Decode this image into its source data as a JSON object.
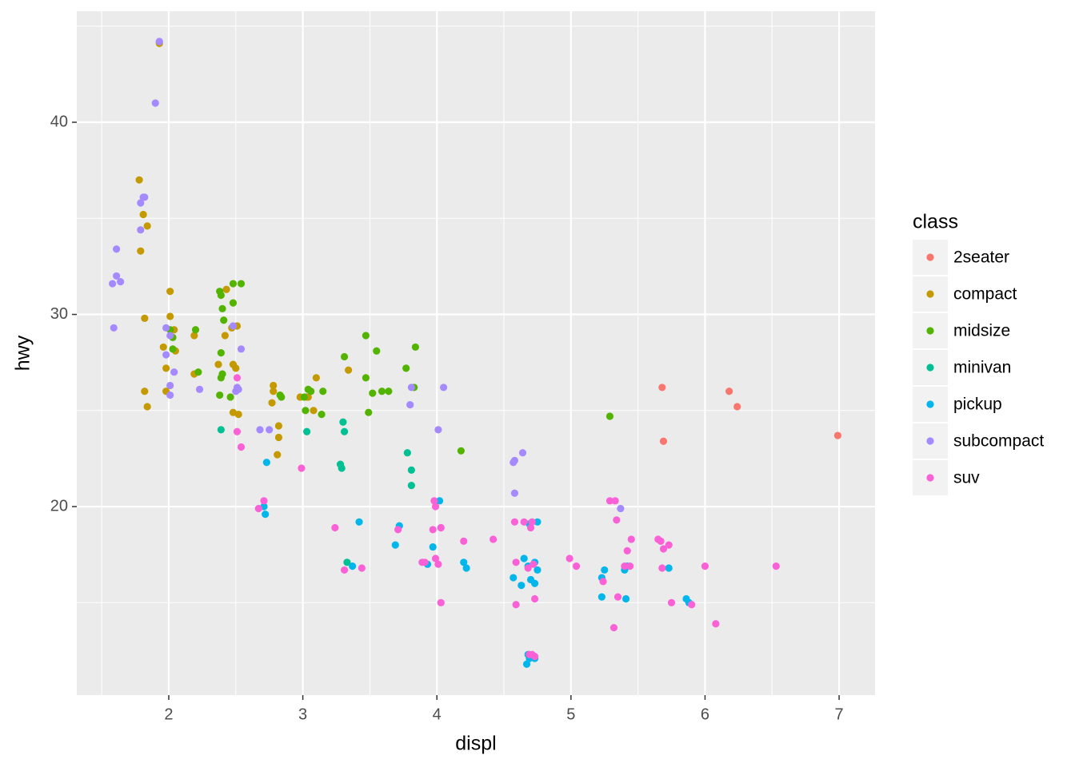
{
  "chart_data": {
    "type": "scatter",
    "x_label": "displ",
    "y_label": "hwy",
    "legend_title": "class",
    "legend_position": "right",
    "grid": true,
    "xlim": [
      1.314,
      7.268
    ],
    "ylim": [
      10.19,
      45.78
    ],
    "xticks": [
      2,
      3,
      4,
      5,
      6,
      7
    ],
    "yticks": [
      20,
      30,
      40
    ],
    "series": [
      {
        "name": "2seater",
        "color": "#F8766D",
        "x": [
          5.68,
          6.18,
          6.24,
          5.69,
          6.99
        ],
        "y": [
          26.2,
          26.0,
          25.2,
          23.4,
          23.7
        ]
      },
      {
        "name": "compact",
        "color": "#C49A00",
        "x": [
          1.93,
          1.78,
          1.81,
          1.84,
          1.79,
          1.82,
          2.01,
          2.01,
          1.96,
          2.04,
          2.05,
          1.98,
          1.98,
          1.82,
          1.84,
          2.19,
          2.19,
          2.37,
          2.42,
          2.43,
          2.47,
          2.48,
          2.5,
          2.48,
          2.52,
          2.51,
          2.78,
          2.78,
          2.77,
          2.82,
          2.82,
          2.81,
          2.98,
          3.03,
          3.04,
          3.08,
          3.1,
          3.34
        ],
        "y": [
          44.1,
          37.0,
          35.2,
          34.6,
          33.3,
          29.8,
          31.2,
          29.9,
          28.3,
          29.2,
          28.1,
          27.2,
          26.0,
          26.0,
          25.2,
          26.9,
          28.9,
          27.4,
          28.9,
          31.3,
          29.3,
          27.4,
          27.2,
          24.9,
          24.8,
          29.4,
          26.3,
          26.0,
          25.4,
          24.2,
          23.6,
          22.7,
          25.7,
          25.7,
          25.7,
          25.0,
          26.7,
          27.1
        ]
      },
      {
        "name": "midsize",
        "color": "#53B400",
        "x": [
          2.01,
          2.03,
          2.03,
          2.2,
          2.22,
          2.38,
          2.39,
          2.4,
          2.41,
          2.39,
          2.4,
          2.39,
          2.48,
          2.48,
          2.54,
          2.46,
          2.38,
          2.83,
          2.84,
          3.01,
          3.04,
          3.06,
          3.15,
          3.02,
          3.14,
          3.47,
          3.55,
          3.31,
          3.47,
          3.52,
          3.59,
          3.64,
          3.49,
          3.77,
          3.83,
          3.84,
          4.18,
          5.29
        ],
        "y": [
          29.2,
          28.8,
          28.2,
          29.2,
          27.0,
          31.2,
          31.0,
          30.3,
          29.7,
          28.0,
          26.9,
          26.7,
          30.6,
          31.6,
          31.6,
          25.7,
          25.8,
          25.8,
          25.7,
          25.7,
          26.1,
          26.0,
          26.0,
          25.0,
          24.8,
          28.9,
          28.1,
          27.8,
          26.7,
          25.9,
          26.0,
          26.0,
          24.9,
          27.2,
          26.2,
          28.3,
          22.9,
          24.7
        ]
      },
      {
        "name": "minivan",
        "color": "#00C094",
        "x": [
          2.39,
          3.03,
          3.3,
          3.31,
          3.28,
          3.29,
          3.78,
          3.81,
          3.81,
          3.33
        ],
        "y": [
          24.0,
          23.9,
          24.4,
          23.9,
          22.2,
          22.0,
          22.8,
          21.9,
          21.1,
          17.1
        ]
      },
      {
        "name": "pickup",
        "color": "#00B6EB",
        "x": [
          2.73,
          2.71,
          2.72,
          3.42,
          3.37,
          3.72,
          3.69,
          3.93,
          3.97,
          4.02,
          4.2,
          4.22,
          4.57,
          4.63,
          4.65,
          4.69,
          4.75,
          4.68,
          4.73,
          4.7,
          4.73,
          4.68,
          4.69,
          4.67,
          4.73,
          4.75,
          5.23,
          5.25,
          5.23,
          5.41,
          5.4,
          5.42,
          5.73,
          5.86,
          5.88
        ],
        "y": [
          22.3,
          20.0,
          19.6,
          19.2,
          16.9,
          19.0,
          18.0,
          17.0,
          17.9,
          20.3,
          17.1,
          16.8,
          16.3,
          15.9,
          17.3,
          19.1,
          19.2,
          16.9,
          17.1,
          16.2,
          16.0,
          12.3,
          12.1,
          11.8,
          12.1,
          16.7,
          16.3,
          16.7,
          15.3,
          15.2,
          16.7,
          16.9,
          16.8,
          15.2,
          15.0
        ]
      },
      {
        "name": "subcompact",
        "color": "#A58AFF",
        "x": [
          1.93,
          1.93,
          1.9,
          1.81,
          1.79,
          1.82,
          1.79,
          1.61,
          1.61,
          1.58,
          1.64,
          1.59,
          1.98,
          2.01,
          1.98,
          2.01,
          2.04,
          2.23,
          2.01,
          2.48,
          2.54,
          2.51,
          2.52,
          2.5,
          2.68,
          2.75,
          3.81,
          3.8,
          4.05,
          4.01,
          4.58,
          4.57,
          4.64,
          4.58,
          5.37
        ],
        "y": [
          44.2,
          44.2,
          41.0,
          36.1,
          35.8,
          36.1,
          34.4,
          33.4,
          32.0,
          31.6,
          31.7,
          29.3,
          29.3,
          28.9,
          27.9,
          26.3,
          27.0,
          26.1,
          25.8,
          29.4,
          28.2,
          26.2,
          26.1,
          26.0,
          24.0,
          24.0,
          26.2,
          25.3,
          26.2,
          24.0,
          22.4,
          22.3,
          22.8,
          20.7,
          19.9
        ]
      },
      {
        "name": "suv",
        "color": "#FB61D7",
        "x": [
          2.51,
          2.51,
          2.54,
          2.99,
          2.71,
          2.67,
          3.24,
          3.31,
          3.44,
          3.71,
          3.89,
          3.91,
          3.98,
          3.99,
          3.97,
          4.03,
          3.99,
          4.01,
          4.03,
          4.03,
          4.2,
          4.42,
          4.58,
          4.65,
          4.59,
          4.59,
          4.7,
          4.71,
          4.68,
          4.72,
          4.73,
          4.69,
          4.73,
          4.71,
          4.99,
          5.04,
          5.24,
          5.29,
          5.33,
          5.34,
          5.42,
          5.4,
          5.44,
          5.45,
          5.35,
          5.32,
          5.65,
          5.67,
          5.69,
          5.73,
          5.68,
          5.75,
          6.0,
          6.08,
          6.53,
          5.9
        ],
        "y": [
          26.7,
          23.9,
          23.1,
          22.0,
          20.3,
          19.9,
          18.9,
          16.7,
          16.8,
          18.8,
          17.1,
          17.1,
          20.3,
          20.0,
          18.8,
          18.9,
          17.3,
          17.0,
          18.9,
          15.0,
          18.2,
          18.3,
          19.2,
          19.2,
          17.1,
          14.9,
          18.9,
          19.2,
          16.8,
          17.0,
          15.2,
          12.3,
          12.2,
          12.3,
          17.3,
          16.9,
          16.1,
          20.3,
          20.3,
          19.3,
          17.7,
          16.9,
          16.9,
          18.3,
          15.3,
          13.7,
          18.3,
          18.2,
          17.8,
          18.0,
          16.8,
          15.0,
          16.9,
          13.9,
          16.9,
          14.9
        ]
      }
    ]
  }
}
